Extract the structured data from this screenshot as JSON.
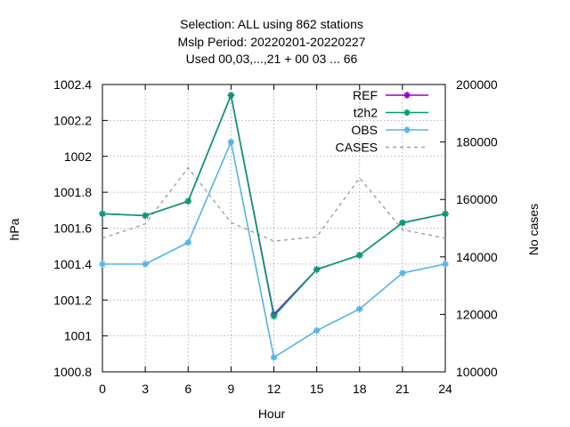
{
  "chart_data": {
    "type": "line",
    "title_lines": [
      "Selection: ALL using   862 stations",
      "Mslp   Period: 20220201-20220227",
      "Used  00,03,...,21  + 00 03 ... 66"
    ],
    "xlabel": "Hour",
    "ylabel": "hPa",
    "y2label": "No cases",
    "x": [
      0,
      3,
      6,
      9,
      12,
      15,
      18,
      21,
      24
    ],
    "xlim": [
      0,
      24
    ],
    "ylim": [
      1000.8,
      1002.4
    ],
    "y2lim": [
      100000,
      200000
    ],
    "xticks": [
      "0",
      "3",
      "6",
      "9",
      "12",
      "15",
      "18",
      "21",
      "24"
    ],
    "yticks": [
      "1000.8",
      "1001",
      "1001.2",
      "1001.4",
      "1001.6",
      "1001.8",
      "1002",
      "1002.2",
      "1002.4"
    ],
    "y2ticks": [
      "100000",
      "120000",
      "140000",
      "160000",
      "180000",
      "200000"
    ],
    "grid": true,
    "legend_position": "top-right",
    "series": [
      {
        "name": "REF",
        "axis": "y1",
        "color": "#9400d3",
        "style": "solid",
        "marker": true,
        "values": [
          1001.68,
          1001.67,
          1001.75,
          1002.34,
          1001.12,
          1001.37,
          1001.45,
          1001.63,
          1001.68
        ]
      },
      {
        "name": "t2h2",
        "axis": "y1",
        "color": "#009e73",
        "style": "solid",
        "marker": true,
        "values": [
          1001.68,
          1001.67,
          1001.75,
          1002.34,
          1001.11,
          1001.37,
          1001.45,
          1001.63,
          1001.68
        ]
      },
      {
        "name": "OBS",
        "axis": "y1",
        "color": "#56b4e9",
        "style": "solid",
        "marker": true,
        "values": [
          1001.4,
          1001.4,
          1001.52,
          1002.08,
          1000.88,
          1001.03,
          1001.15,
          1001.35,
          1001.4
        ]
      },
      {
        "name": "CASES",
        "axis": "y2",
        "color": "#a0a0a0",
        "style": "dashed",
        "marker": false,
        "values": [
          146500,
          151500,
          171000,
          152000,
          145500,
          147000,
          167500,
          149500,
          146500
        ]
      }
    ]
  }
}
